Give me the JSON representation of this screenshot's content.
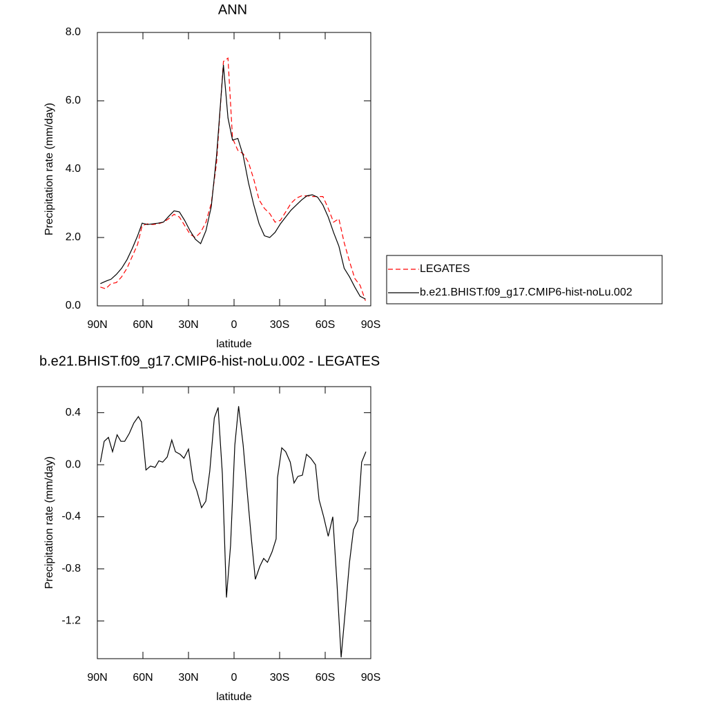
{
  "chart_data": [
    {
      "type": "line",
      "title": "ANN",
      "xlabel": "latitude",
      "ylabel": "Precipitation rate (mm/day)",
      "xlim": [
        90,
        -90
      ],
      "ylim": [
        0,
        8
      ],
      "xticks": [
        {
          "value": 90,
          "label": "90N"
        },
        {
          "value": 60,
          "label": "60N"
        },
        {
          "value": 30,
          "label": "30N"
        },
        0,
        {
          "value": -30,
          "label": "30S"
        },
        {
          "value": -60,
          "label": "60S"
        },
        {
          "value": -90,
          "label": "90S"
        }
      ],
      "yticks": [
        {
          "value": 0,
          "label": "0.0"
        },
        {
          "value": 2,
          "label": "2.0"
        },
        {
          "value": 4,
          "label": "4.0"
        },
        {
          "value": 6,
          "label": "6.0"
        },
        {
          "value": 8,
          "label": "8.0"
        }
      ],
      "legend": "right",
      "x": [
        88,
        84.5,
        81,
        77.5,
        74,
        70.5,
        67,
        63.5,
        60.5,
        57,
        53.5,
        50,
        46.5,
        43,
        39.5,
        36,
        32.5,
        29,
        25.5,
        22,
        18.5,
        15,
        11.5,
        7,
        4,
        1,
        -2.5,
        -6,
        -9.5,
        -13,
        -16.5,
        -20,
        -23.5,
        -27,
        -30.5,
        -34,
        -37.5,
        -41,
        -44.5,
        -48,
        -51.5,
        -55,
        -58.5,
        -62,
        -65.5,
        -69,
        -72.5,
        -76,
        -79.5,
        -83,
        -86.5
      ],
      "series": [
        {
          "name": "LEGATES",
          "color": "#ff0000",
          "dash": true,
          "values": [
            0.55,
            0.5,
            0.65,
            0.68,
            0.85,
            1.1,
            1.45,
            1.8,
            2.35,
            2.4,
            2.38,
            2.4,
            2.45,
            2.55,
            2.68,
            2.6,
            2.35,
            2.1,
            2.0,
            2.15,
            2.45,
            3.0,
            4.2,
            7.15,
            7.25,
            4.9,
            4.55,
            4.45,
            4.2,
            3.7,
            3.1,
            2.85,
            2.7,
            2.45,
            2.5,
            2.75,
            3.0,
            3.15,
            3.22,
            3.22,
            3.2,
            3.2,
            3.2,
            2.85,
            2.45,
            2.55,
            1.85,
            1.3,
            0.8,
            0.6,
            0.15
          ]
        },
        {
          "name": "b.e21.BHIST.f09_g17.CMIP6-hist-noLu.002",
          "color": "#000000",
          "dash": false,
          "values": [
            0.65,
            0.72,
            0.78,
            0.92,
            1.1,
            1.35,
            1.68,
            2.05,
            2.42,
            2.38,
            2.4,
            2.42,
            2.45,
            2.62,
            2.78,
            2.75,
            2.5,
            2.2,
            1.95,
            1.82,
            2.2,
            2.9,
            4.4,
            7.05,
            5.5,
            4.85,
            4.9,
            4.4,
            3.6,
            2.95,
            2.4,
            2.05,
            2.0,
            2.15,
            2.4,
            2.6,
            2.8,
            2.95,
            3.1,
            3.22,
            3.25,
            3.18,
            2.95,
            2.6,
            2.15,
            1.75,
            1.1,
            0.85,
            0.55,
            0.28,
            0.2
          ]
        }
      ]
    },
    {
      "type": "line",
      "title": "b.e21.BHIST.f09_g17.CMIP6-hist-noLu.002 - LEGATES",
      "xlabel": "latitude",
      "ylabel": "Precipitation rate (mm/day)",
      "xlim": [
        90,
        -90
      ],
      "ylim": [
        -1.49,
        0.6
      ],
      "xticks": [
        {
          "value": 90,
          "label": "90N"
        },
        {
          "value": 60,
          "label": "60N"
        },
        {
          "value": 30,
          "label": "30N"
        },
        0,
        {
          "value": -30,
          "label": "30S"
        },
        {
          "value": -60,
          "label": "60S"
        },
        {
          "value": -90,
          "label": "90S"
        }
      ],
      "yticks": [
        -1.2,
        -0.8,
        -0.4,
        {
          "value": 0,
          "label": "0.0"
        },
        0.4
      ],
      "x": [
        88,
        85.5,
        82.7,
        80,
        77,
        74.5,
        72,
        69,
        66,
        63,
        61,
        58,
        55,
        52,
        49.5,
        47,
        44,
        41,
        38.6,
        35.5,
        33,
        30,
        27,
        24.5,
        21.4,
        18.6,
        16,
        13,
        10.5,
        7.7,
        5,
        2.3,
        -0.5,
        -3,
        -6,
        -8.6,
        -11.4,
        -14,
        -17,
        -19.5,
        -22,
        -25,
        -27.7,
        -28.6,
        -31.4,
        -34,
        -37,
        -39.5,
        -42,
        -45,
        -47.7,
        -50.5,
        -53.6,
        -56,
        -59,
        -62,
        -65,
        -67.7,
        -70.5,
        -73,
        -76,
        -78.6,
        -81.4,
        -84,
        -86.8
      ],
      "series": [
        {
          "color": "#000000",
          "dash": false,
          "values": [
            0.02,
            0.18,
            0.21,
            0.1,
            0.23,
            0.18,
            0.18,
            0.24,
            0.32,
            0.37,
            0.33,
            -0.04,
            -0.01,
            -0.02,
            0.03,
            0.02,
            0.06,
            0.19,
            0.1,
            0.08,
            0.05,
            0.12,
            -0.12,
            -0.2,
            -0.33,
            -0.28,
            -0.05,
            0.36,
            0.44,
            -0.07,
            -1.02,
            -0.62,
            0.15,
            0.45,
            0.15,
            -0.2,
            -0.57,
            -0.88,
            -0.78,
            -0.72,
            -0.75,
            -0.67,
            -0.57,
            -0.1,
            0.13,
            0.1,
            0.02,
            -0.14,
            -0.09,
            -0.08,
            0.08,
            0.05,
            0.0,
            -0.27,
            -0.4,
            -0.55,
            -0.4,
            -0.9,
            -1.48,
            -1.15,
            -0.75,
            -0.5,
            -0.43,
            0.02,
            0.1
          ]
        }
      ]
    }
  ]
}
